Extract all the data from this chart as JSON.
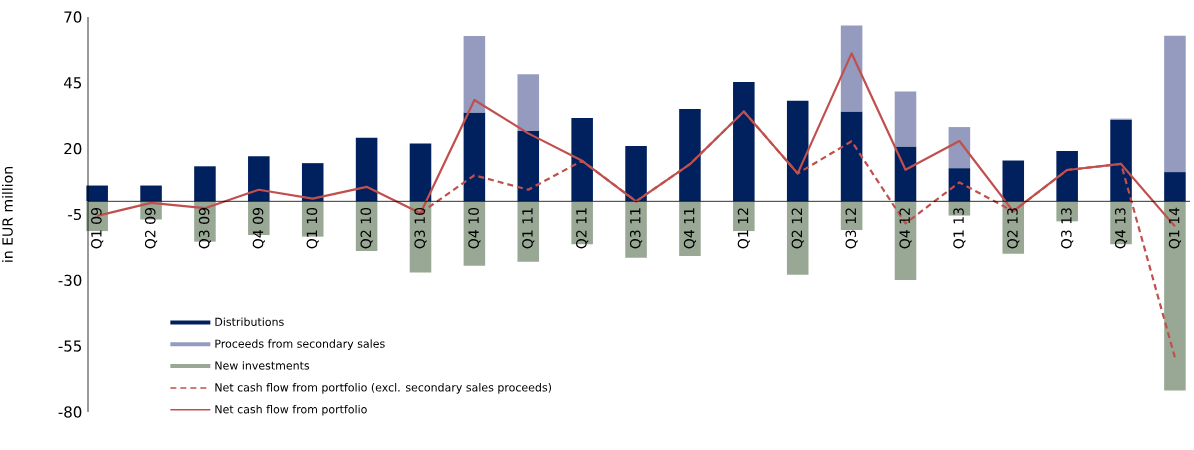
{
  "chart_data": {
    "type": "bar",
    "stacked": true,
    "ylabel": "in EUR million",
    "categories": [
      "Q1 09",
      "Q2 09",
      "Q3 09",
      "Q4 09",
      "Q1 10",
      "Q2 10",
      "Q3 10",
      "Q4 10",
      "Q1 11",
      "Q2 11",
      "Q3 11",
      "Q4 11",
      "Q1 12",
      "Q2 12",
      "Q3 12",
      "Q4 12",
      "Q1 13",
      "Q2 13",
      "Q3 13",
      "Q4 13",
      "Q1 14"
    ],
    "series": [
      {
        "name": "Distributions",
        "color": "#00215e",
        "values": [
          6.0,
          6.0,
          13.3,
          17.1,
          14.5,
          24.1,
          22.0,
          33.7,
          26.7,
          31.6,
          21.0,
          35.1,
          45.3,
          38.2,
          34.1,
          20.8,
          12.6,
          15.5,
          19.1,
          30.9,
          11.1
        ]
      },
      {
        "name": "Proceeds from secondary sales",
        "color": "#949bbf",
        "values": [
          null,
          null,
          null,
          null,
          null,
          null,
          null,
          29.1,
          21.6,
          null,
          null,
          null,
          null,
          null,
          32.7,
          20.9,
          15.6,
          null,
          null,
          0.5,
          51.8
        ]
      },
      {
        "name": "New investments",
        "color": "#98a894",
        "values": [
          -11.3,
          -6.9,
          -15.3,
          -12.8,
          -13.4,
          -18.9,
          -27.0,
          -24.5,
          -22.9,
          -16.3,
          -21.4,
          -20.8,
          -11.3,
          -27.9,
          -10.9,
          -29.9,
          -5.4,
          -19.9,
          -7.6,
          -16.3,
          -71.8
        ]
      },
      {
        "name": "Net cash flow from portfolio (excl. secondary sales proceeds)",
        "type": "line",
        "line_style": "dashed",
        "color": "#c0504d",
        "values": [
          null,
          null,
          null,
          null,
          null,
          null,
          -4.5,
          9.9,
          4.4,
          15.4,
          0.0,
          14.1,
          34.1,
          10.6,
          22.8,
          -8.4,
          7.2,
          -3.8,
          11.9,
          14.2,
          -59.3
        ]
      },
      {
        "name": "Net cash flow from portfolio",
        "type": "line",
        "line_style": "solid",
        "color": "#c0504d",
        "values": [
          -5.5,
          -0.6,
          -2.6,
          4.4,
          1.0,
          5.5,
          -4.5,
          38.5,
          25.8,
          15.4,
          0.0,
          14.1,
          34.1,
          10.6,
          56.2,
          12.0,
          22.9,
          -3.8,
          11.9,
          14.2,
          -9.5
        ]
      }
    ],
    "ylim": [
      -80,
      70
    ],
    "yticks": [
      -80,
      -55,
      -30,
      -5,
      20,
      45,
      70
    ],
    "legend": "bottom left",
    "marker": "none"
  }
}
